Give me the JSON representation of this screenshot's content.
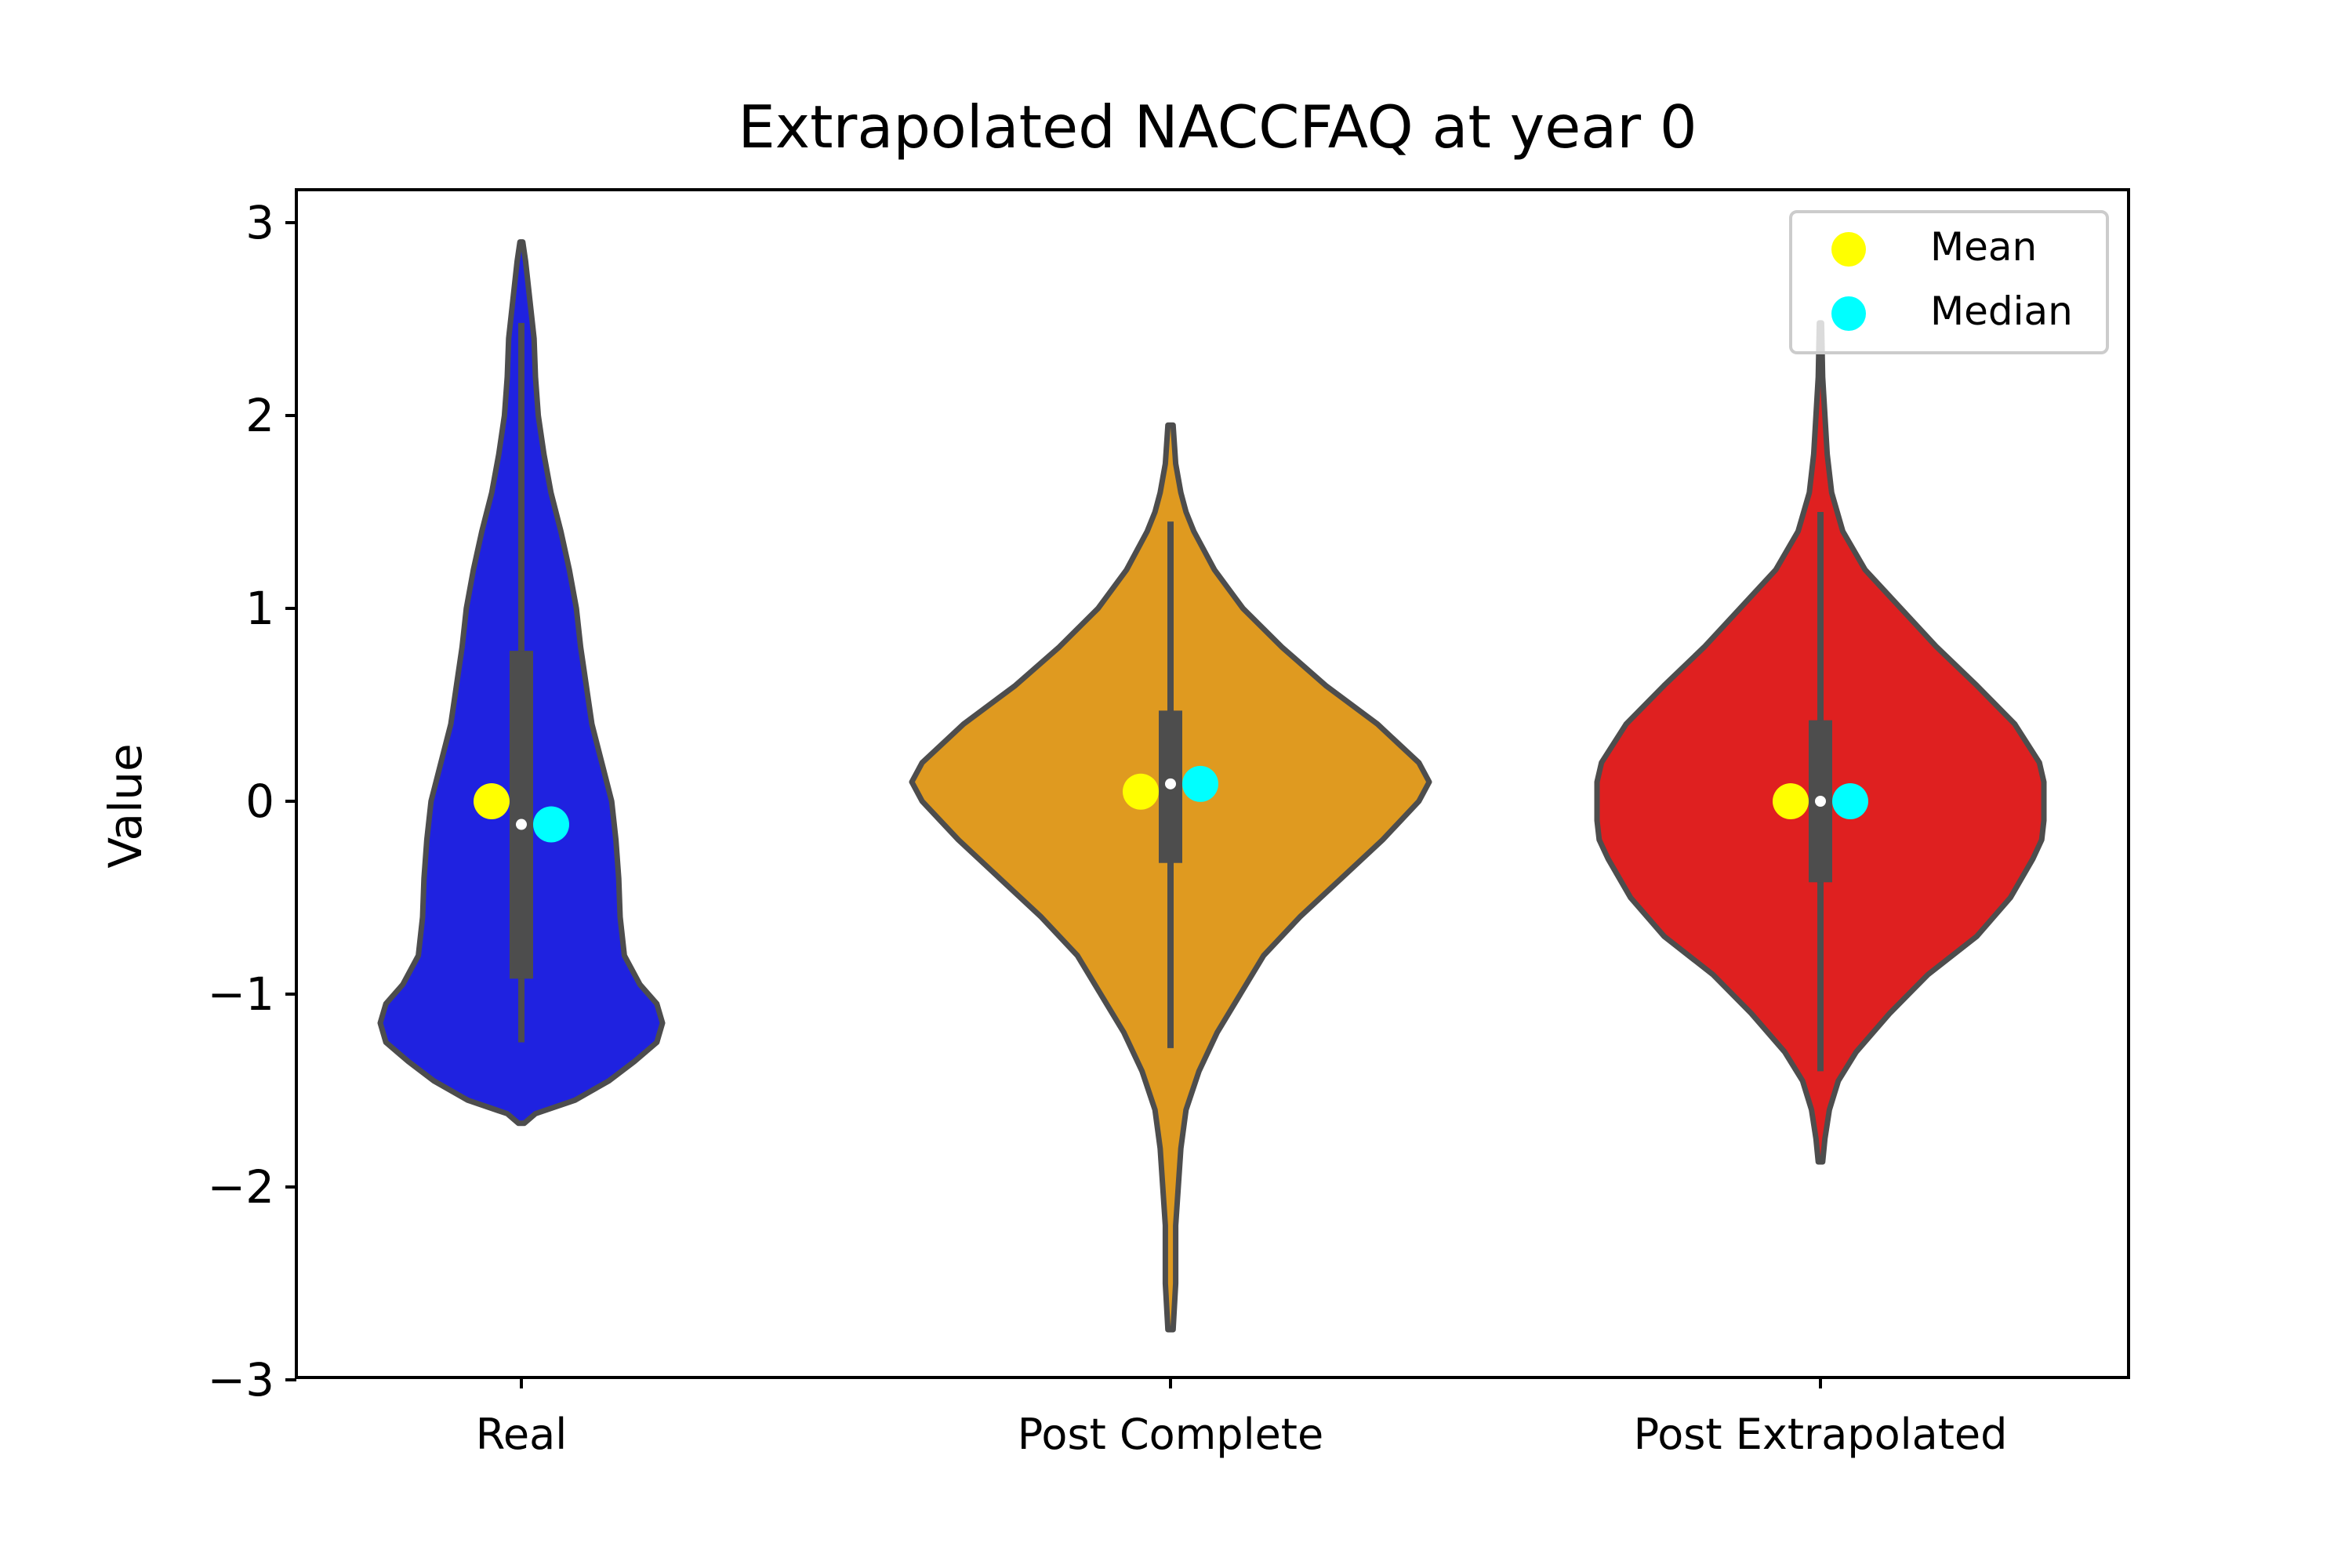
{
  "chart_data": {
    "type": "violin",
    "title": "Extrapolated NACCFAQ at year 0",
    "xlabel": "",
    "ylabel": "Value",
    "ylim": [
      -3,
      3.2
    ],
    "yticks": [
      3,
      2,
      1,
      0,
      -1,
      -2,
      -3
    ],
    "ytick_labels": [
      "3",
      "2",
      "1",
      "0",
      "−1",
      "−2",
      "−3"
    ],
    "categories": [
      "Real",
      "Post Complete",
      "Post Extrapolated"
    ],
    "grid": false,
    "legend": {
      "placement": "top-right",
      "entries": [
        {
          "label": "Mean",
          "color": "#ffff00"
        },
        {
          "label": "Median",
          "color": "#00ffff"
        }
      ]
    },
    "colors": {
      "violin_outline": "#4d4d4d",
      "box": "#4d4d4d",
      "median_dot": "#ffffff"
    },
    "series": [
      {
        "category": "Real",
        "color": "#1f22e0",
        "mean": 0.0,
        "median": -0.12,
        "q1": -0.92,
        "q3": 0.78,
        "whisker_low": -1.25,
        "whisker_high": 2.48,
        "profile_y": [
          -1.67,
          -1.62,
          -1.55,
          -1.45,
          -1.35,
          -1.25,
          -1.15,
          -1.05,
          -0.95,
          -0.8,
          -0.6,
          -0.4,
          -0.2,
          0.0,
          0.2,
          0.4,
          0.6,
          0.8,
          1.0,
          1.2,
          1.4,
          1.6,
          1.8,
          2.0,
          2.2,
          2.4,
          2.6,
          2.8,
          2.9
        ],
        "profile_width": [
          0.02,
          0.1,
          0.38,
          0.62,
          0.8,
          0.96,
          1.0,
          0.96,
          0.84,
          0.73,
          0.7,
          0.69,
          0.67,
          0.64,
          0.57,
          0.5,
          0.46,
          0.42,
          0.39,
          0.34,
          0.28,
          0.21,
          0.16,
          0.12,
          0.1,
          0.09,
          0.06,
          0.03,
          0.01
        ]
      },
      {
        "category": "Post Complete",
        "color": "#df9a20",
        "mean": 0.05,
        "median": 0.09,
        "q1": -0.32,
        "q3": 0.47,
        "whisker_low": -1.28,
        "whisker_high": 1.45,
        "profile_y": [
          -2.74,
          -2.5,
          -2.2,
          -2.0,
          -1.8,
          -1.6,
          -1.4,
          -1.2,
          -1.0,
          -0.8,
          -0.6,
          -0.4,
          -0.2,
          0.0,
          0.1,
          0.2,
          0.4,
          0.6,
          0.8,
          1.0,
          1.2,
          1.4,
          1.5,
          1.6,
          1.75,
          1.95
        ],
        "profile_width": [
          0.01,
          0.02,
          0.02,
          0.03,
          0.04,
          0.06,
          0.11,
          0.18,
          0.27,
          0.36,
          0.5,
          0.66,
          0.82,
          0.96,
          1.0,
          0.96,
          0.8,
          0.6,
          0.43,
          0.28,
          0.17,
          0.09,
          0.06,
          0.04,
          0.02,
          0.01
        ]
      },
      {
        "category": "Post Extrapolated",
        "color": "#df2020",
        "mean": 0.0,
        "median": 0.0,
        "q1": -0.42,
        "q3": 0.42,
        "whisker_low": -1.4,
        "whisker_high": 1.5,
        "profile_y": [
          -1.87,
          -1.75,
          -1.6,
          -1.45,
          -1.3,
          -1.1,
          -0.9,
          -0.7,
          -0.5,
          -0.3,
          -0.2,
          -0.1,
          0.0,
          0.1,
          0.2,
          0.4,
          0.6,
          0.8,
          1.0,
          1.2,
          1.4,
          1.6,
          1.8,
          2.0,
          2.2,
          2.48
        ],
        "profile_width": [
          0.01,
          0.02,
          0.04,
          0.08,
          0.16,
          0.31,
          0.48,
          0.7,
          0.85,
          0.95,
          0.99,
          1.0,
          1.0,
          1.0,
          0.98,
          0.87,
          0.7,
          0.52,
          0.36,
          0.2,
          0.1,
          0.05,
          0.03,
          0.02,
          0.01,
          0.005
        ]
      }
    ]
  }
}
